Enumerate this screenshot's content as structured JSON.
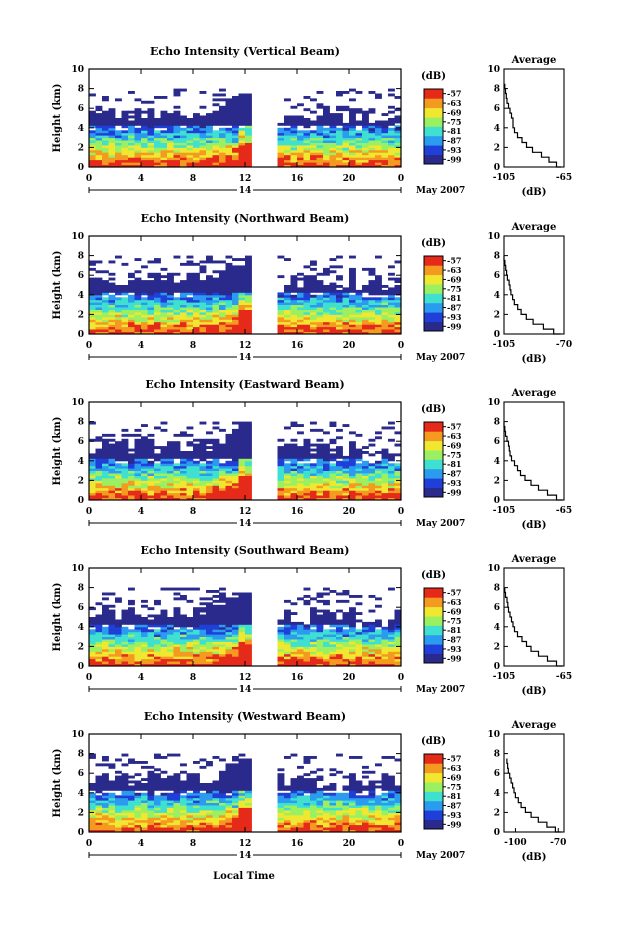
{
  "figure": {
    "xlabel": "Local Time",
    "date_label": "May 2007",
    "day_marker": "14"
  },
  "colors": {
    "colormap": [
      "#2a2a8c",
      "#1f3fd8",
      "#2b9bf0",
      "#3fe0d0",
      "#9af060",
      "#f0e830",
      "#f59a20",
      "#e52a1a"
    ],
    "gap_background": "#ffffff"
  },
  "chart_data": [
    {
      "type": "heatmap",
      "title": "Echo Intensity (Vertical Beam)",
      "ylabel": "Height (km)",
      "x_ticks": [
        "0",
        "4",
        "8",
        "12",
        "16",
        "20",
        "0"
      ],
      "y_ticks": [
        "0",
        "2",
        "4",
        "6",
        "8",
        "10"
      ],
      "xlim": [
        0,
        24
      ],
      "ylim": [
        0,
        10
      ],
      "colorbar": {
        "label": "(dB)",
        "ticks": [
          "-57",
          "-63",
          "-69",
          "-75",
          "-81",
          "-87",
          "-93",
          "-99"
        ],
        "range": [
          -102,
          -54
        ]
      },
      "data_gap_hours": [
        12.5,
        14.5
      ],
      "profile": {
        "title": "Average",
        "xlabel": "(dB)",
        "x_ticks": [
          "-105",
          "-65"
        ],
        "xlim": [
          -105,
          -65
        ],
        "heights_km": [
          0,
          0.5,
          1,
          1.5,
          2,
          2.5,
          3,
          3.5,
          4,
          4.5,
          5,
          5.5,
          6,
          6.5,
          7,
          7.5,
          8,
          8.5
        ],
        "values_db": [
          -67,
          -70,
          -75,
          -80,
          -86,
          -90,
          -93,
          -96,
          -98,
          -99,
          -99,
          -100,
          -101,
          -102,
          -103,
          -103.5,
          -104,
          -104.5
        ]
      }
    },
    {
      "type": "heatmap",
      "title": "Echo Intensity (Northward Beam)",
      "ylabel": "Height (km)",
      "x_ticks": [
        "0",
        "4",
        "8",
        "12",
        "16",
        "20",
        "0"
      ],
      "y_ticks": [
        "0",
        "2",
        "4",
        "6",
        "8",
        "10"
      ],
      "xlim": [
        0,
        24
      ],
      "ylim": [
        0,
        10
      ],
      "colorbar": {
        "label": "(dB)",
        "ticks": [
          "-57",
          "-63",
          "-69",
          "-75",
          "-81",
          "-87",
          "-93",
          "-99"
        ],
        "range": [
          -102,
          -54
        ]
      },
      "data_gap_hours": [
        12.5,
        14.5
      ],
      "profile": {
        "title": "Average",
        "xlabel": "(dB)",
        "x_ticks": [
          "-105",
          "-70"
        ],
        "xlim": [
          -105,
          -70
        ],
        "heights_km": [
          0,
          0.5,
          1,
          1.5,
          2,
          2.5,
          3,
          3.5,
          4,
          4.5,
          5,
          5.5,
          6,
          6.5,
          7,
          7.5,
          8
        ],
        "values_db": [
          -72,
          -76,
          -82,
          -88,
          -92,
          -95,
          -97,
          -99,
          -100,
          -101,
          -101.5,
          -102,
          -103,
          -103.5,
          -104,
          -104.5,
          -105
        ]
      }
    },
    {
      "type": "heatmap",
      "title": "Echo Intensity (Eastward Beam)",
      "ylabel": "Height (km)",
      "x_ticks": [
        "0",
        "4",
        "8",
        "12",
        "16",
        "20",
        "0"
      ],
      "y_ticks": [
        "0",
        "2",
        "4",
        "6",
        "8",
        "10"
      ],
      "xlim": [
        0,
        24
      ],
      "ylim": [
        0,
        10
      ],
      "colorbar": {
        "label": "(dB)",
        "ticks": [
          "-57",
          "-63",
          "-69",
          "-75",
          "-81",
          "-87",
          "-93",
          "-99"
        ],
        "range": [
          -102,
          -54
        ]
      },
      "data_gap_hours": [
        12.5,
        14.5
      ],
      "profile": {
        "title": "Average",
        "xlabel": "(dB)",
        "x_ticks": [
          "-105",
          "-65"
        ],
        "xlim": [
          -105,
          -65
        ],
        "heights_km": [
          0,
          0.5,
          1,
          1.5,
          2,
          2.5,
          3,
          3.5,
          4,
          4.5,
          5,
          5.5,
          6,
          6.5,
          7,
          7.5,
          8
        ],
        "values_db": [
          -66,
          -70,
          -76,
          -82,
          -87,
          -91,
          -94,
          -96,
          -98,
          -100,
          -101,
          -101.5,
          -102,
          -103,
          -104,
          -104.5,
          -105
        ]
      }
    },
    {
      "type": "heatmap",
      "title": "Echo Intensity (Southward Beam)",
      "ylabel": "Height (km)",
      "x_ticks": [
        "0",
        "4",
        "8",
        "12",
        "16",
        "20",
        "0"
      ],
      "y_ticks": [
        "0",
        "2",
        "4",
        "6",
        "8",
        "10"
      ],
      "xlim": [
        0,
        24
      ],
      "ylim": [
        0,
        10
      ],
      "colorbar": {
        "label": "(dB)",
        "ticks": [
          "-57",
          "-63",
          "-69",
          "-75",
          "-81",
          "-87",
          "-93",
          "-99"
        ],
        "range": [
          -102,
          -54
        ]
      },
      "data_gap_hours": [
        12.5,
        14.5
      ],
      "profile": {
        "title": "Average",
        "xlabel": "(dB)",
        "x_ticks": [
          "-105",
          "-65"
        ],
        "xlim": [
          -105,
          -65
        ],
        "heights_km": [
          0,
          0.5,
          1,
          1.5,
          2,
          2.5,
          3,
          3.5,
          4,
          4.5,
          5,
          5.5,
          6,
          6.5,
          7,
          7.5,
          8
        ],
        "values_db": [
          -66,
          -70,
          -76,
          -82,
          -87,
          -90,
          -93,
          -96,
          -98,
          -99,
          -100,
          -101,
          -102,
          -102.5,
          -103,
          -104,
          -104.5
        ]
      }
    },
    {
      "type": "heatmap",
      "title": "Echo Intensity (Westward Beam)",
      "ylabel": "Height (km)",
      "x_ticks": [
        "0",
        "4",
        "8",
        "12",
        "16",
        "20",
        "0"
      ],
      "y_ticks": [
        "0",
        "2",
        "4",
        "6",
        "8",
        "10"
      ],
      "xlim": [
        0,
        24
      ],
      "ylim": [
        0,
        10
      ],
      "colorbar": {
        "label": "(dB)",
        "ticks": [
          "-57",
          "-63",
          "-69",
          "-75",
          "-81",
          "-87",
          "-93",
          "-99"
        ],
        "range": [
          -102,
          -54
        ]
      },
      "data_gap_hours": [
        12.5,
        14.5
      ],
      "profile": {
        "title": "Average",
        "xlabel": "(dB)",
        "x_ticks": [
          "-100",
          "-70"
        ],
        "xlim": [
          -108,
          -66
        ],
        "heights_km": [
          0,
          0.5,
          1,
          1.5,
          2,
          2.5,
          3,
          3.5,
          4,
          4.5,
          5,
          5.5,
          6,
          6.5,
          7,
          7.5
        ],
        "values_db": [
          -68,
          -72,
          -78,
          -84,
          -89,
          -93,
          -96,
          -98,
          -100,
          -101,
          -102,
          -103,
          -104,
          -105,
          -105.5,
          -106
        ]
      }
    }
  ]
}
